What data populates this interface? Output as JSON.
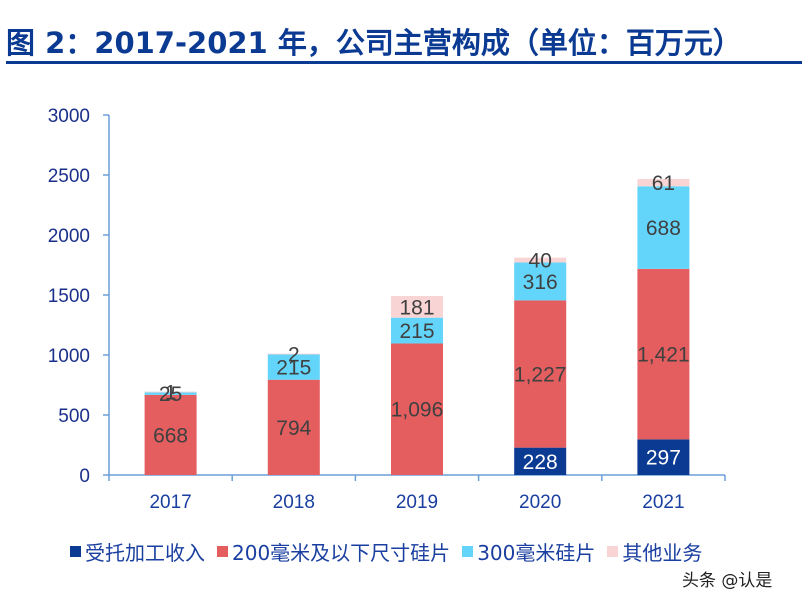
{
  "title": "图 2：2017-2021 年，公司主营构成（单位：百万元）",
  "watermark": "头条 @认是",
  "colors": {
    "title": "#0b3a93",
    "axis": "#6a9fd8",
    "foundry": "#0b3a93",
    "wafer200": "#e45e5f",
    "wafer300": "#63d5fb",
    "other": "#f9d4d5"
  },
  "chart_data": {
    "type": "bar",
    "stacked": true,
    "title": "图 2：2017-2021 年，公司主营构成（单位：百万元）",
    "xlabel": "",
    "ylabel": "",
    "ylim": [
      0,
      3000
    ],
    "yticks": [
      0,
      500,
      1000,
      1500,
      2000,
      2500,
      3000
    ],
    "grid": false,
    "legend_position": "bottom",
    "categories": [
      "2017",
      "2018",
      "2019",
      "2020",
      "2021"
    ],
    "series": [
      {
        "name": "受托加工收入",
        "color": "#0b3a93",
        "label_color": "#ffffff",
        "values": [
          0,
          0,
          0,
          228,
          297
        ],
        "labels": [
          "",
          "",
          "",
          "228",
          "297"
        ]
      },
      {
        "name": "200毫米及以下尺寸硅片",
        "color": "#e45e5f",
        "label_color": "#404040",
        "values": [
          668,
          794,
          1096,
          1227,
          1421
        ],
        "labels": [
          "668",
          "794",
          "1,096",
          "1,227",
          "1,421"
        ]
      },
      {
        "name": "300毫米硅片",
        "color": "#63d5fb",
        "label_color": "#404040",
        "values": [
          25,
          215,
          215,
          316,
          688
        ],
        "labels": [
          "25",
          "215",
          "215",
          "316",
          "688"
        ]
      },
      {
        "name": "其他业务",
        "color": "#f9d4d5",
        "label_color": "#404040",
        "values": [
          1,
          2,
          181,
          40,
          61
        ],
        "labels": [
          "1",
          "2",
          "181",
          "40",
          "61"
        ]
      }
    ]
  }
}
